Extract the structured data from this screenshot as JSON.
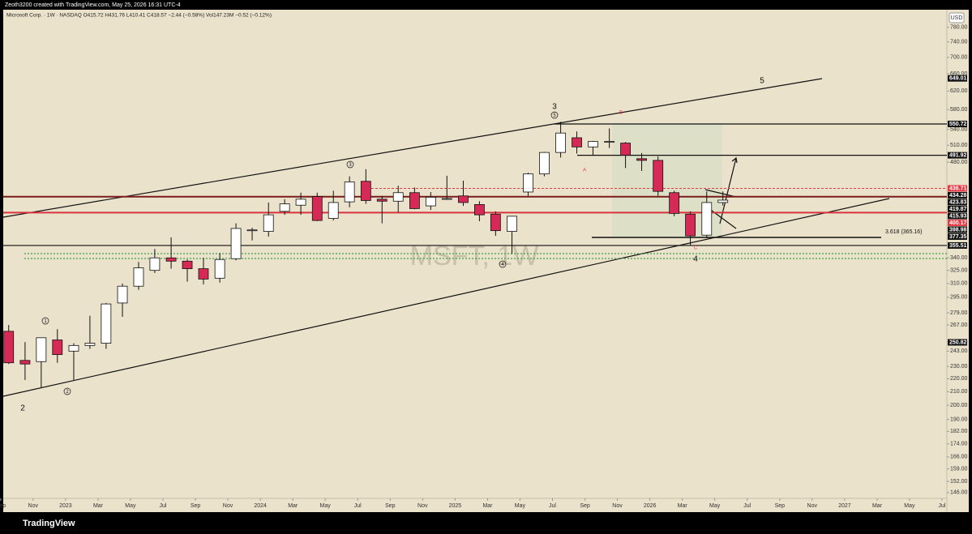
{
  "header": "Zeoth3200 created with TradingView.com, May 25, 2026 16:31 UTC-4",
  "legend": "Microsoft Corp. · 1W · NASDAQ  O415.72  H431.76  L410.41  C418.57  −2.44 (−0.58%)   Vol147.23M  −0.52 (−0.12%)",
  "footer": "TradingView",
  "chart_data": {
    "type": "candlestick",
    "watermark": "MSFT, 1W",
    "currency": "USD",
    "log_scale": true,
    "grid": false,
    "up_color": "#ffffff",
    "down_color": "#d42a55",
    "xlim": [
      2022.68,
      2027.525
    ],
    "ylim": [
      143,
      831
    ],
    "x": [
      2022.708,
      2022.792,
      2022.875,
      2022.958,
      2023.042,
      2023.125,
      2023.208,
      2023.292,
      2023.375,
      2023.458,
      2023.542,
      2023.625,
      2023.708,
      2023.792,
      2023.875,
      2023.958,
      2024.042,
      2024.125,
      2024.208,
      2024.292,
      2024.375,
      2024.458,
      2024.542,
      2024.625,
      2024.708,
      2024.792,
      2024.875,
      2024.958,
      2025.042,
      2025.125,
      2025.208,
      2025.292,
      2025.375,
      2025.458,
      2025.542,
      2025.625,
      2025.708,
      2025.792,
      2025.875,
      2025.958,
      2026.042,
      2026.125,
      2026.208,
      2026.292,
      2026.375
    ],
    "ohlc": [
      [
        261,
        267,
        232,
        233
      ],
      [
        235,
        251,
        219,
        232
      ],
      [
        234,
        255,
        213,
        255
      ],
      [
        253,
        263,
        233,
        240
      ],
      [
        243,
        250,
        219,
        248
      ],
      [
        248,
        276,
        245,
        250
      ],
      [
        250,
        289,
        245,
        288
      ],
      [
        289,
        310,
        275,
        307
      ],
      [
        307,
        335,
        303,
        328
      ],
      [
        325,
        351,
        322,
        340
      ],
      [
        340,
        366,
        327,
        336
      ],
      [
        336,
        338,
        312,
        327
      ],
      [
        327,
        340,
        309,
        315
      ],
      [
        316,
        346,
        311,
        338
      ],
      [
        339,
        385,
        337,
        378
      ],
      [
        376,
        379,
        362,
        376
      ],
      [
        374,
        415,
        367,
        397
      ],
      [
        402,
        420,
        397,
        413
      ],
      [
        411,
        430,
        397,
        420
      ],
      [
        424,
        430,
        388,
        389
      ],
      [
        392,
        433,
        389,
        415
      ],
      [
        416,
        456,
        408,
        447
      ],
      [
        448,
        468,
        413,
        418
      ],
      [
        420,
        425,
        385,
        417
      ],
      [
        417,
        441,
        401,
        430
      ],
      [
        430,
        438,
        405,
        406
      ],
      [
        410,
        431,
        404,
        423
      ],
      [
        421,
        457,
        419,
        421
      ],
      [
        425,
        449,
        410,
        415
      ],
      [
        412,
        417,
        388,
        397
      ],
      [
        398,
        402,
        368,
        375
      ],
      [
        374,
        395,
        345,
        395
      ],
      [
        431,
        462,
        425,
        460
      ],
      [
        460,
        498,
        456,
        497
      ],
      [
        497,
        555,
        488,
        533
      ],
      [
        524,
        536,
        495,
        507
      ],
      [
        507,
        518,
        492,
        517
      ],
      [
        517,
        542,
        505,
        517
      ],
      [
        514,
        516,
        470,
        492
      ],
      [
        486,
        496,
        465,
        483
      ],
      [
        483,
        490,
        425,
        432
      ],
      [
        430,
        433,
        395,
        399
      ],
      [
        398,
        402,
        356,
        368
      ],
      [
        369,
        432,
        365,
        415
      ],
      [
        415,
        431.76,
        410.41,
        418.57
      ]
    ],
    "yticks": [
      {
        "value": 780,
        "label": "780.00"
      },
      {
        "value": 740,
        "label": "740.00"
      },
      {
        "value": 700,
        "label": "700.00"
      },
      {
        "value": 660,
        "label": "660.00"
      },
      {
        "value": 620,
        "label": "620.00"
      },
      {
        "value": 580,
        "label": "580.00"
      },
      {
        "value": 540,
        "label": "540.00"
      },
      {
        "value": 510,
        "label": "510.00"
      },
      {
        "value": 480,
        "label": "480.00"
      },
      {
        "value": 340,
        "label": "340.00"
      },
      {
        "value": 325,
        "label": "325.00"
      },
      {
        "value": 310,
        "label": "310.00"
      },
      {
        "value": 295,
        "label": "295.00"
      },
      {
        "value": 279,
        "label": "279.00"
      },
      {
        "value": 267,
        "label": "267.00"
      },
      {
        "value": 243,
        "label": "243.00"
      },
      {
        "value": 230,
        "label": "230.00"
      },
      {
        "value": 220,
        "label": "220.00"
      },
      {
        "value": 210,
        "label": "210.00"
      },
      {
        "value": 200,
        "label": "200.00"
      },
      {
        "value": 190,
        "label": "190.00"
      },
      {
        "value": 182,
        "label": "182.00"
      },
      {
        "value": 174,
        "label": "174.00"
      },
      {
        "value": 166,
        "label": "166.00"
      },
      {
        "value": 159,
        "label": "159.00"
      },
      {
        "value": 152,
        "label": "152.00"
      },
      {
        "value": 146,
        "label": "146.00"
      }
    ],
    "xticks": [
      {
        "value": 2022.667,
        "label": "Sep"
      },
      {
        "value": 2022.833,
        "label": "Nov"
      },
      2023,
      {
        "value": 2023.167,
        "label": "Mar"
      },
      {
        "value": 2023.333,
        "label": "May"
      },
      {
        "value": 2023.5,
        "label": "Jul"
      },
      {
        "value": 2023.667,
        "label": "Sep"
      },
      {
        "value": 2023.833,
        "label": "Nov"
      },
      2024,
      {
        "value": 2024.167,
        "label": "Mar"
      },
      {
        "value": 2024.333,
        "label": "May"
      },
      {
        "value": 2024.5,
        "label": "Jul"
      },
      {
        "value": 2024.667,
        "label": "Sep"
      },
      {
        "value": 2024.833,
        "label": "Nov"
      },
      2025,
      {
        "value": 2025.167,
        "label": "Mar"
      },
      {
        "value": 2025.333,
        "label": "May"
      },
      {
        "value": 2025.5,
        "label": "Jul"
      },
      {
        "value": 2025.667,
        "label": "Sep"
      },
      {
        "value": 2025.833,
        "label": "Nov"
      },
      2026,
      {
        "value": 2026.167,
        "label": "Mar"
      },
      {
        "value": 2026.333,
        "label": "May"
      },
      {
        "value": 2026.5,
        "label": "Jul"
      },
      {
        "value": 2026.667,
        "label": "Sep"
      },
      {
        "value": 2026.833,
        "label": "Nov"
      },
      2027,
      {
        "value": 2027.167,
        "label": "Mar"
      },
      {
        "value": 2027.333,
        "label": "May"
      },
      {
        "value": 2027.5,
        "label": "Jul"
      }
    ],
    "price_levels": [
      {
        "value": 649.01,
        "color": "#111111"
      },
      {
        "value": 550.72,
        "color": "#111111"
      },
      {
        "value": 491.92,
        "color": "#111111"
      },
      {
        "value": 436.71,
        "color": "#e53945"
      },
      {
        "value": 434.28,
        "color": "#111111"
      },
      {
        "value": 423.83,
        "color": "#111111"
      },
      {
        "value": 419.87,
        "color": "#111111"
      },
      {
        "value": 415.93,
        "color": "#111111"
      },
      {
        "value": 400.17,
        "color": "#e53945"
      },
      {
        "value": 398.98,
        "color": "#111111"
      },
      {
        "value": 377.35,
        "color": "#111111"
      },
      {
        "value": 355.51,
        "color": "#111111"
      },
      {
        "value": 250.82,
        "color": "#111111"
      }
    ],
    "annotations": [
      "5",
      "3",
      "2",
      "4",
      "B",
      "A",
      "C",
      "3.618 (365.16)"
    ],
    "wave_labels": [
      "1",
      "2",
      "3",
      "4",
      "5"
    ]
  }
}
